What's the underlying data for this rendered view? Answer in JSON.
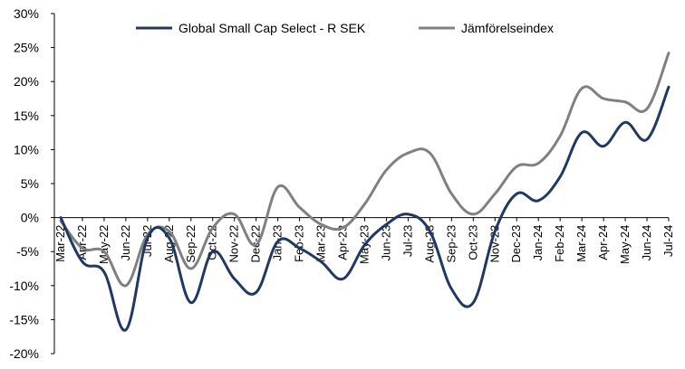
{
  "chart_data": {
    "type": "line",
    "title": "",
    "xlabel": "",
    "ylabel": "",
    "ylim": [
      -20,
      30
    ],
    "y_ticks": [
      30,
      25,
      20,
      15,
      10,
      5,
      0,
      -5,
      -10,
      -15,
      -20
    ],
    "y_tick_labels": [
      "30%",
      "25%",
      "20%",
      "15%",
      "10%",
      "5%",
      "0%",
      "-5%",
      "-10%",
      "-15%",
      "-20%"
    ],
    "grid": false,
    "legend_position": "top",
    "x_tick_labels": [
      "Mar-22",
      "Apr-22",
      "May-22",
      "Jun-22",
      "Jul-22",
      "Aug-22",
      "Sep-22",
      "Oct-22",
      "Nov-22",
      "Dec-22",
      "Jan-23",
      "Feb-23",
      "Mar-23",
      "Apr-23",
      "May-23",
      "Jun-23",
      "Jul-23",
      "Aug-23",
      "Sep-23",
      "Oct-23",
      "Nov-23",
      "Dec-23",
      "Jan-24",
      "Feb-24",
      "Mar-24",
      "Apr-24",
      "May-24",
      "Jun-24",
      "Jul-24"
    ],
    "series": [
      {
        "name": "Global Small Cap Select - R SEK",
        "color": "#1f3864",
        "values": [
          0,
          -6.5,
          -8,
          -16.5,
          -3,
          -3,
          -12.5,
          -5,
          -9,
          -11,
          -3.5,
          -4.5,
          -6.5,
          -9,
          -4,
          -1,
          0.5,
          -2,
          -10.5,
          -12.5,
          -2,
          3.5,
          2.5,
          6,
          12.5,
          10.5,
          14,
          11.5,
          19.2
        ]
      },
      {
        "name": "Jämförelseindex",
        "color": "#808080",
        "values": [
          -0.5,
          -4.5,
          -5,
          -10,
          -2.5,
          -2,
          -7.5,
          -1.5,
          0.5,
          -4,
          4.5,
          1.5,
          -1,
          -1.5,
          2,
          7,
          9.5,
          9.5,
          3.5,
          0.5,
          3.5,
          7.5,
          8,
          12,
          19,
          17.5,
          17,
          16,
          24.2
        ]
      }
    ]
  }
}
